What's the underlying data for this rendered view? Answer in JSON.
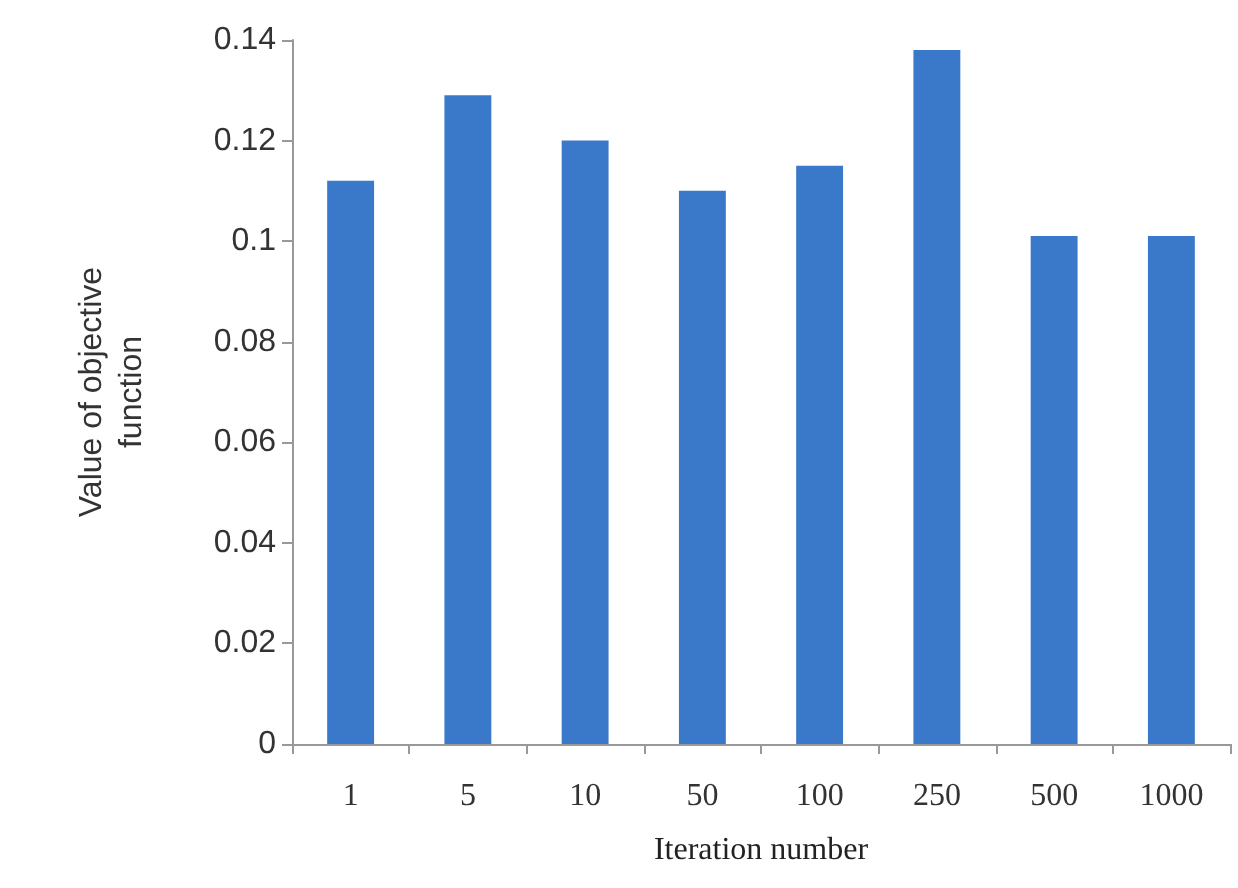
{
  "chart_data": {
    "type": "bar",
    "xlabel": "Iteration number",
    "ylabel": "Value of objective\nfunction",
    "categories": [
      "1",
      "5",
      "10",
      "50",
      "100",
      "250",
      "500",
      "1000"
    ],
    "values": [
      0.112,
      0.129,
      0.12,
      0.11,
      0.115,
      0.138,
      0.101,
      0.101
    ],
    "color": "#3a78c9",
    "ylim": [
      0,
      0.14
    ],
    "yticks": [
      0,
      0.02,
      0.04,
      0.06,
      0.08,
      0.1,
      0.12,
      0.14
    ],
    "grid": false
  }
}
